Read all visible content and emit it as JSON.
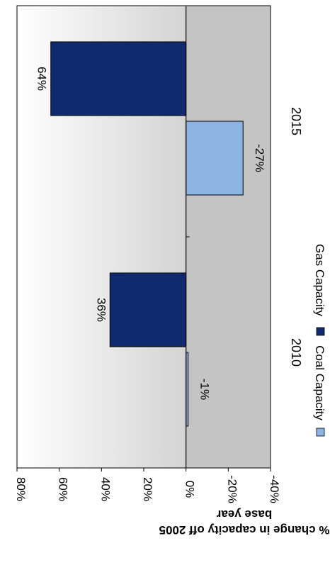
{
  "chart_data": {
    "type": "bar",
    "orientation": "rotated-90-clockwise",
    "categories": [
      "2010",
      "2015"
    ],
    "series": [
      {
        "name": "Coal Capacity",
        "color": "#8db3e2",
        "values": [
          -1,
          -27
        ]
      },
      {
        "name": "Gas Capacity",
        "color": "#0f2a6e",
        "values": [
          36,
          64
        ]
      }
    ],
    "data_labels": [
      [
        "-1%",
        "-27%"
      ],
      [
        "36%",
        "64%"
      ]
    ],
    "ylabel_line1": "% change in capacity off 2005",
    "ylabel_line2": "base year",
    "ylim": [
      -40,
      80
    ],
    "yticks": [
      80,
      60,
      40,
      20,
      0,
      -20,
      -40
    ],
    "ytick_labels": [
      "80%",
      "60%",
      "40%",
      "20%",
      "0%",
      "-20%",
      "-40%"
    ],
    "grid": false,
    "legend_position": "bottom",
    "background": {
      "positive_region": "gradient white to light gray",
      "negative_region": "solid gray",
      "negative_color": "#c4c4c4",
      "gradient_light": "#ffffff",
      "gradient_dark": "#d4d4d4"
    }
  }
}
